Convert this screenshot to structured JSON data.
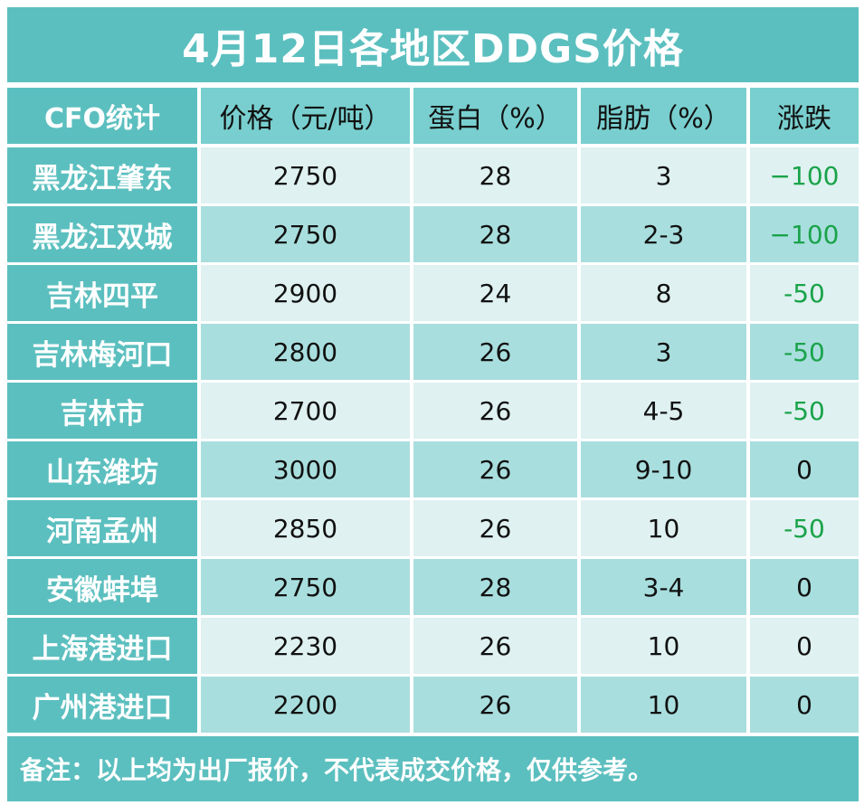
{
  "title": "4月12日各地区DDGS价格",
  "headers": [
    "CFO统计",
    "价格（元/吨）",
    "蛋白（%）",
    "脂肪（%）",
    "涨跌"
  ],
  "rows": [
    {
      "region": "黑龙江肇东",
      "price": "2750",
      "protein": "28",
      "fat": "3",
      "change": "−100"
    },
    {
      "region": "黑龙江双城",
      "price": "2750",
      "protein": "28",
      "fat": "2-3",
      "change": "−100"
    },
    {
      "region": "吉林四平",
      "price": "2900",
      "protein": "24",
      "fat": "8",
      "change": "-50"
    },
    {
      "region": "吉林梅河口",
      "price": "2800",
      "protein": "26",
      "fat": "3",
      "change": "-50"
    },
    {
      "region": "吉林市",
      "price": "2700",
      "protein": "26",
      "fat": "4-5",
      "change": "-50"
    },
    {
      "region": "山东潍坊",
      "price": "3000",
      "protein": "26",
      "fat": "9-10",
      "change": "0"
    },
    {
      "region": "河南孟州",
      "price": "2850",
      "protein": "26",
      "fat": "10",
      "change": "-50"
    },
    {
      "region": "安徽蚌埠",
      "price": "2750",
      "protein": "28",
      "fat": "3-4",
      "change": "0"
    },
    {
      "region": "上海港进口",
      "price": "2230",
      "protein": "26",
      "fat": "10",
      "change": "0"
    },
    {
      "region": "广州港进口",
      "price": "2200",
      "protein": "26",
      "fat": "10",
      "change": "0"
    }
  ],
  "note": "备注：以上均为出厂报价，不代表成交价格，仅供参考。",
  "colors": {
    "header_bg": "#5cbfbf",
    "negative_change": "#1aa34a"
  }
}
